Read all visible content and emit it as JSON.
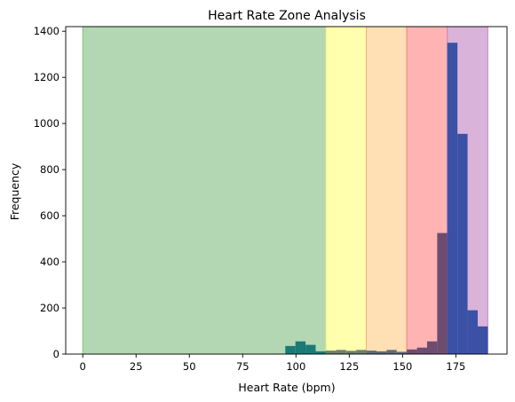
{
  "chart_data": {
    "type": "bar",
    "title": "Heart Rate Zone Analysis",
    "xlabel": "Heart Rate (bpm)",
    "ylabel": "Frequency",
    "xlim": [
      -8,
      199
    ],
    "ylim": [
      0,
      1420
    ],
    "xticks": [
      0,
      25,
      50,
      75,
      100,
      125,
      150,
      175
    ],
    "yticks": [
      0,
      200,
      400,
      600,
      800,
      1000,
      1200,
      1400
    ],
    "grid": false,
    "zones": [
      {
        "start": 0,
        "end": 114,
        "color": "#b3d7b3",
        "edge": "#7cc47c"
      },
      {
        "start": 114,
        "end": 133,
        "color": "#ffffad",
        "edge": "#e6e67a"
      },
      {
        "start": 133,
        "end": 152,
        "color": "#ffdfb3",
        "edge": "#f2b27a"
      },
      {
        "start": 152,
        "end": 171,
        "color": "#ffb3b3",
        "edge": "#e68a8a"
      },
      {
        "start": 171,
        "end": 190,
        "color": "#d9b3d9",
        "edge": "#c48ac4"
      }
    ],
    "histogram": {
      "bin_width": 4.75,
      "bin_starts": [
        95,
        99.75,
        104.5,
        109.25,
        114,
        118.75,
        123.5,
        128.25,
        133,
        137.75,
        142.5,
        147.25,
        152,
        156.75,
        161.5,
        166.25,
        171,
        175.75,
        180.5,
        185.25
      ],
      "values": [
        35,
        55,
        40,
        12,
        15,
        18,
        14,
        18,
        15,
        12,
        18,
        10,
        20,
        28,
        55,
        525,
        1350,
        955,
        190,
        120
      ],
      "colors": [
        "#1a7a78",
        "#1a7a78",
        "#1a7a78",
        "#1a7a78",
        "#6d7f6e",
        "#6d7f6e",
        "#6d7f6e",
        "#6d7f6e",
        "#5e6c79",
        "#5e6c79",
        "#5e6c79",
        "#5e6c79",
        "#6c4d70",
        "#6c4d70",
        "#6c4d70",
        "#6c4d70",
        "#3a51a6",
        "#3a51a6",
        "#3a51a6",
        "#3a51a6"
      ]
    }
  }
}
